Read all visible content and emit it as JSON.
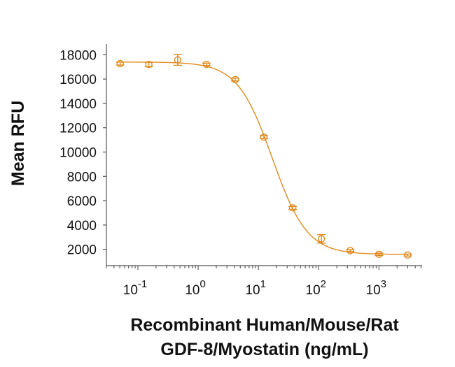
{
  "chart_data": {
    "type": "scatter",
    "title": "",
    "xlabel_lines": [
      "Recombinant Human/Mouse/Rat",
      "GDF-8/Myostatin (ng/mL)"
    ],
    "ylabel": "Mean RFU",
    "xscale": "log",
    "xlim": [
      0.03,
      5200
    ],
    "ylim": [
      660,
      18880
    ],
    "yticks": [
      2000,
      4000,
      6000,
      8000,
      10000,
      12000,
      14000,
      16000,
      18000
    ],
    "ytick_labels": [
      "2000",
      "4000",
      "6000",
      "8000",
      "10000",
      "12000",
      "14000",
      "16000",
      "18000"
    ],
    "xticks": [
      {
        "base": "10",
        "exp": "-1",
        "value": 0.1
      },
      {
        "base": "10",
        "exp": "0",
        "value": 1
      },
      {
        "base": "10",
        "exp": "1",
        "value": 10
      },
      {
        "base": "10",
        "exp": "2",
        "value": 100
      },
      {
        "base": "10",
        "exp": "3",
        "value": 1000
      }
    ],
    "grid": false,
    "color": "#E08A1E",
    "series": [
      {
        "name": "GDF-8/Myostatin",
        "x": [
          0.0508,
          0.152,
          0.457,
          1.37,
          4.12,
          12.3,
          37.0,
          111,
          333,
          1000,
          3000
        ],
        "y": [
          17270,
          17200,
          17580,
          17210,
          15960,
          11230,
          5410,
          2860,
          1900,
          1590,
          1530
        ],
        "err": [
          120,
          180,
          450,
          100,
          120,
          120,
          120,
          350,
          80,
          100,
          80
        ]
      }
    ],
    "fit": {
      "model": "4PL",
      "top": 17400,
      "bottom": 1580,
      "ec50": 17,
      "hill": 1.5
    }
  }
}
